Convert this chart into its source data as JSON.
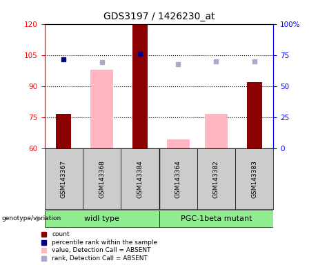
{
  "title": "GDS3197 / 1426230_at",
  "samples": [
    "GSM143367",
    "GSM143368",
    "GSM143384",
    "GSM143364",
    "GSM143382",
    "GSM143383"
  ],
  "ylim_left": [
    60,
    120
  ],
  "ylim_right": [
    0,
    100
  ],
  "yticks_left": [
    60,
    75,
    90,
    105,
    120
  ],
  "yticks_right": [
    0,
    25,
    50,
    75,
    100
  ],
  "ytick_labels_right": [
    "0",
    "25",
    "50",
    "75",
    "100%"
  ],
  "hlines": [
    75,
    90,
    105
  ],
  "red_bars": {
    "GSM143367": 76.5,
    "GSM143384": 119.5,
    "GSM143383": 92.0
  },
  "pink_bars": {
    "GSM143368": 98.0,
    "GSM143364": 64.5,
    "GSM143382": 76.5
  },
  "blue_squares": {
    "GSM143367": 103.0,
    "GSM143384": 105.5
  },
  "light_blue_squares": {
    "GSM143368": 101.5,
    "GSM143364": 100.5,
    "GSM143382": 101.8,
    "GSM143383": 102.0
  },
  "bar_width": 0.4,
  "red_bar_color": "#8B0000",
  "pink_bar_color": "#FFB6C1",
  "blue_square_color": "#00008B",
  "light_blue_color": "#AAAACC",
  "group_annotation": "genotype/variation",
  "group1_label": "widl type",
  "group2_label": "PGC-1beta mutant",
  "group1_color": "#90EE90",
  "group2_color": "#90EE90",
  "legend_items": [
    {
      "label": "count",
      "color": "#8B0000"
    },
    {
      "label": "percentile rank within the sample",
      "color": "#00008B"
    },
    {
      "label": "value, Detection Call = ABSENT",
      "color": "#FFB6C1"
    },
    {
      "label": "rank, Detection Call = ABSENT",
      "color": "#AAAACC"
    }
  ],
  "sample_bg_color": "#CCCCCC",
  "plot_bg_color": "#FFFFFF"
}
